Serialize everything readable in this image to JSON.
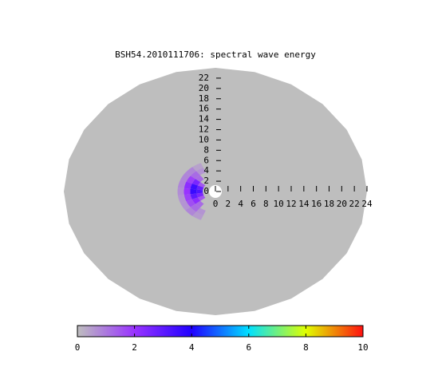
{
  "chart_data": {
    "type": "polar-heatmap",
    "title": "BSH54.2010111706: spectral wave energy",
    "rlim": [
      0,
      24
    ],
    "yticks": [
      0,
      2,
      4,
      6,
      8,
      10,
      12,
      14,
      16,
      18,
      20,
      22
    ],
    "xticks": [
      0,
      2,
      4,
      6,
      8,
      10,
      12,
      14,
      16,
      18,
      20,
      22,
      24
    ],
    "background_color": "#bebebe",
    "direction_step": 15,
    "radius_step": 1,
    "rings": [
      {
        "radius": 2.5,
        "directions": [
          150,
          165,
          180,
          195,
          210
        ],
        "values": [
          1.5,
          2.8,
          3.2,
          2.5,
          1.5
        ]
      },
      {
        "radius": 3.5,
        "directions": [
          135,
          150,
          165,
          180,
          195,
          210,
          225
        ],
        "values": [
          1.2,
          2.5,
          3.5,
          3.6,
          3,
          2.2,
          1.2
        ]
      },
      {
        "radius": 4.5,
        "directions": [
          120,
          135,
          150,
          165,
          180,
          195,
          210,
          225,
          240
        ],
        "values": [
          0.6,
          1.2,
          1.8,
          2.2,
          2,
          1.8,
          1.6,
          1.2,
          0.6
        ]
      },
      {
        "radius": 5.5,
        "directions": [
          120,
          135,
          150,
          165,
          180,
          195,
          210,
          225,
          240
        ],
        "values": [
          0.4,
          0.8,
          0.8,
          0.8,
          0.7,
          0.6,
          0.6,
          0.8,
          0.5
        ]
      }
    ],
    "clim": [
      0,
      10
    ],
    "cticks": [
      0,
      2,
      4,
      6,
      8,
      10
    ],
    "colors": [
      "#bebebe",
      "#9933ff",
      "#2000ff",
      "#00e0ff",
      "#e0ff00",
      "#ff1010"
    ]
  }
}
